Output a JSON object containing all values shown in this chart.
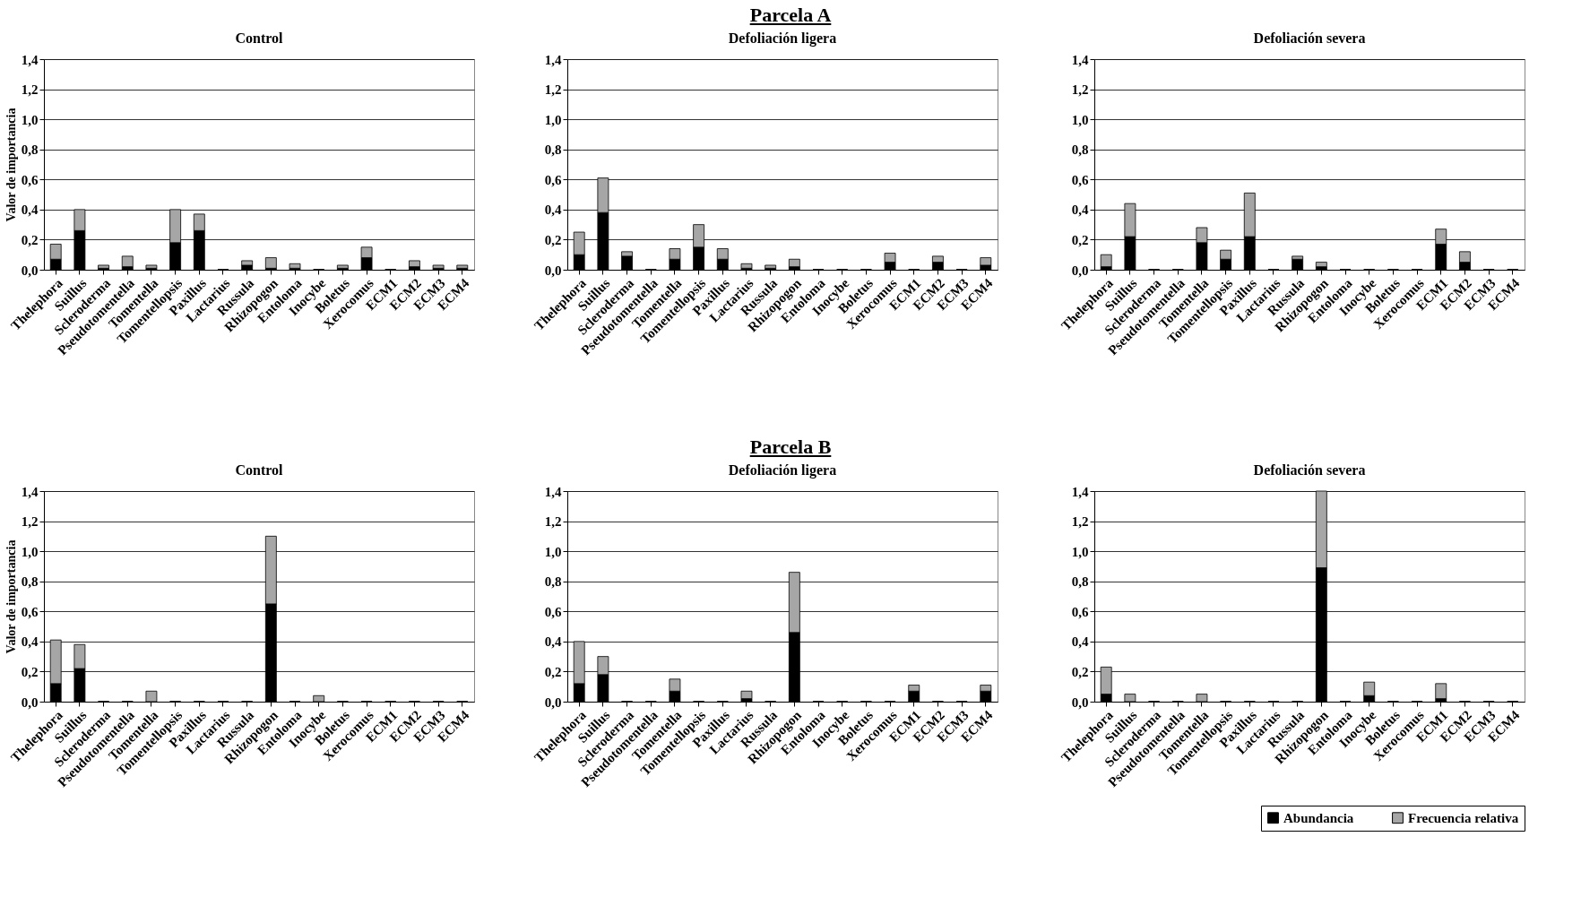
{
  "chart_data": [
    {
      "type": "bar",
      "stacked": true,
      "title": "Control",
      "ylabel": "Valor de importancia",
      "annotations": [
        "Parcela A"
      ],
      "grid": "y",
      "legend": false,
      "categories": [
        "Thelephora",
        "Suillus",
        "Scleroderma",
        "Pseudotomentella",
        "Tomentella",
        "Tomentellopsis",
        "Paxillus",
        "Lactarius",
        "Russula",
        "Rhizopogon",
        "Entoloma",
        "Inocybe",
        "Boletus",
        "Xerocomus",
        "ECM1",
        "ECM2",
        "ECM3",
        "ECM4"
      ],
      "ylim": [
        0,
        1.4
      ],
      "yticks": [
        {
          "value": 0,
          "label": "0,0"
        },
        {
          "value": 0.2,
          "label": "0,2"
        },
        {
          "value": 0.4,
          "label": "0,4"
        },
        {
          "value": 0.6,
          "label": "0,6"
        },
        {
          "value": 0.8,
          "label": "0,8"
        },
        {
          "value": 1,
          "label": "1,0"
        },
        {
          "value": 1.2,
          "label": "1,2"
        },
        {
          "value": 1.4,
          "label": "1,4"
        }
      ],
      "series": [
        {
          "color": "#000000",
          "values": [
            0.07,
            0.26,
            0.01,
            0.02,
            0.01,
            0.18,
            0.26,
            0,
            0.03,
            0.01,
            0.01,
            0,
            0.01,
            0.08,
            0,
            0.02,
            0.01,
            0.01
          ]
        },
        {
          "color": "#a6a6a6",
          "values": [
            0.1,
            0.14,
            0.02,
            0.07,
            0.02,
            0.22,
            0.11,
            0,
            0.03,
            0.07,
            0.03,
            0,
            0.02,
            0.07,
            0,
            0.04,
            0.02,
            0.02
          ]
        }
      ]
    },
    {
      "type": "bar",
      "stacked": true,
      "title": "Defoliación ligera",
      "grid": "y",
      "legend": false,
      "categories": [
        "Thelephora",
        "Suillus",
        "Scleroderma",
        "Pseudotomentella",
        "Tomentella",
        "Tomentellopsis",
        "Paxillus",
        "Lactarius",
        "Russula",
        "Rhizopogon",
        "Entoloma",
        "Inocybe",
        "Boletus",
        "Xerocomus",
        "ECM1",
        "ECM2",
        "ECM3",
        "ECM4"
      ],
      "ylim": [
        0,
        1.4
      ],
      "yticks": [
        {
          "value": 0,
          "label": "0,0"
        },
        {
          "value": 0.2,
          "label": "0,2"
        },
        {
          "value": 0.4,
          "label": "0,4"
        },
        {
          "value": 0.6,
          "label": "0,6"
        },
        {
          "value": 0.8,
          "label": "0,8"
        },
        {
          "value": 1,
          "label": "1,0"
        },
        {
          "value": 1.2,
          "label": "1,2"
        },
        {
          "value": 1.4,
          "label": "1,4"
        }
      ],
      "series": [
        {
          "color": "#000000",
          "values": [
            0.1,
            0.38,
            0.09,
            0,
            0.07,
            0.15,
            0.07,
            0.01,
            0.01,
            0.02,
            0,
            0,
            0,
            0.05,
            0,
            0.05,
            0,
            0.03
          ]
        },
        {
          "color": "#a6a6a6",
          "values": [
            0.15,
            0.23,
            0.03,
            0,
            0.07,
            0.15,
            0.07,
            0.03,
            0.02,
            0.05,
            0,
            0,
            0,
            0.06,
            0,
            0.04,
            0,
            0.05
          ]
        }
      ]
    },
    {
      "type": "bar",
      "stacked": true,
      "title": "Defoliación severa",
      "grid": "y",
      "legend": false,
      "categories": [
        "Thelephora",
        "Suillus",
        "Scleroderma",
        "Pseudotomentella",
        "Tomentella",
        "Tomentellopsis",
        "Paxillus",
        "Lactarius",
        "Russula",
        "Rhizopogon",
        "Entoloma",
        "Inocybe",
        "Boletus",
        "Xerocomus",
        "ECM1",
        "ECM2",
        "ECM3",
        "ECM4"
      ],
      "ylim": [
        0,
        1.4
      ],
      "yticks": [
        {
          "value": 0,
          "label": "0,0"
        },
        {
          "value": 0.2,
          "label": "0,2"
        },
        {
          "value": 0.4,
          "label": "0,4"
        },
        {
          "value": 0.6,
          "label": "0,6"
        },
        {
          "value": 0.8,
          "label": "0,8"
        },
        {
          "value": 1,
          "label": "1,0"
        },
        {
          "value": 1.2,
          "label": "1,2"
        },
        {
          "value": 1.4,
          "label": "1,4"
        }
      ],
      "series": [
        {
          "color": "#000000",
          "values": [
            0.02,
            0.22,
            0,
            0,
            0.18,
            0.07,
            0.22,
            0,
            0.07,
            0.02,
            0,
            0,
            0,
            0,
            0.17,
            0.05,
            0,
            0
          ]
        },
        {
          "color": "#a6a6a6",
          "values": [
            0.08,
            0.22,
            0,
            0,
            0.1,
            0.06,
            0.29,
            0,
            0.02,
            0.03,
            0,
            0,
            0,
            0,
            0.1,
            0.07,
            0,
            0
          ]
        }
      ]
    },
    {
      "type": "bar",
      "stacked": true,
      "title": "Control",
      "ylabel": "Valor de importancia",
      "annotations": [
        "Parcela B"
      ],
      "grid": "y",
      "legend": false,
      "categories": [
        "Thelephora",
        "Suillus",
        "Scleroderma",
        "Pseudotomentella",
        "Tomentella",
        "Tomentellopsis",
        "Paxillus",
        "Lactarius",
        "Russula",
        "Rhizopogon",
        "Entoloma",
        "Inocybe",
        "Boletus",
        "Xerocomus",
        "ECM1",
        "ECM2",
        "ECM3",
        "ECM4"
      ],
      "ylim": [
        0,
        1.4
      ],
      "yticks": [
        {
          "value": 0,
          "label": "0,0"
        },
        {
          "value": 0.2,
          "label": "0,2"
        },
        {
          "value": 0.4,
          "label": "0,4"
        },
        {
          "value": 0.6,
          "label": "0,6"
        },
        {
          "value": 0.8,
          "label": "0,8"
        },
        {
          "value": 1,
          "label": "1,0"
        },
        {
          "value": 1.2,
          "label": "1,2"
        },
        {
          "value": 1.4,
          "label": "1,4"
        }
      ],
      "series": [
        {
          "color": "#000000",
          "values": [
            0.12,
            0.22,
            0,
            0,
            0,
            0,
            0,
            0,
            0,
            0.65,
            0,
            0,
            0,
            0,
            0,
            0,
            0,
            0
          ]
        },
        {
          "color": "#a6a6a6",
          "values": [
            0.29,
            0.16,
            0,
            0,
            0.07,
            0,
            0,
            0,
            0,
            0.45,
            0,
            0.04,
            0,
            0,
            0,
            0,
            0,
            0
          ]
        }
      ]
    },
    {
      "type": "bar",
      "stacked": true,
      "title": "Defoliación ligera",
      "grid": "y",
      "legend": false,
      "categories": [
        "Thelephora",
        "Suillus",
        "Scleroderma",
        "Pseudotomentella",
        "Tomentella",
        "Tomentellopsis",
        "Paxillus",
        "Lactarius",
        "Russula",
        "Rhizopogon",
        "Entoloma",
        "Inocybe",
        "Boletus",
        "Xerocomus",
        "ECM1",
        "ECM2",
        "ECM3",
        "ECM4"
      ],
      "ylim": [
        0,
        1.4
      ],
      "yticks": [
        {
          "value": 0,
          "label": "0,0"
        },
        {
          "value": 0.2,
          "label": "0,2"
        },
        {
          "value": 0.4,
          "label": "0,4"
        },
        {
          "value": 0.6,
          "label": "0,6"
        },
        {
          "value": 0.8,
          "label": "0,8"
        },
        {
          "value": 1,
          "label": "1,0"
        },
        {
          "value": 1.2,
          "label": "1,2"
        },
        {
          "value": 1.4,
          "label": "1,4"
        }
      ],
      "series": [
        {
          "color": "#000000",
          "values": [
            0.12,
            0.18,
            0,
            0,
            0.07,
            0,
            0,
            0.02,
            0,
            0.46,
            0,
            0,
            0,
            0,
            0.07,
            0,
            0,
            0.07
          ]
        },
        {
          "color": "#a6a6a6",
          "values": [
            0.28,
            0.12,
            0,
            0,
            0.08,
            0,
            0,
            0.05,
            0,
            0.4,
            0,
            0,
            0,
            0,
            0.04,
            0,
            0,
            0.04
          ]
        }
      ]
    },
    {
      "type": "bar",
      "stacked": true,
      "title": "Defoliación severa",
      "grid": "y",
      "legend": "bottom right",
      "categories": [
        "Thelephora",
        "Suillus",
        "Scleroderma",
        "Pseudotomentella",
        "Tomentella",
        "Tomentellopsis",
        "Paxillus",
        "Lactarius",
        "Russula",
        "Rhizopogon",
        "Entoloma",
        "Inocybe",
        "Boletus",
        "Xerocomus",
        "ECM1",
        "ECM2",
        "ECM3",
        "ECM4"
      ],
      "ylim": [
        0,
        1.4
      ],
      "yticks": [
        {
          "value": 0,
          "label": "0,0"
        },
        {
          "value": 0.2,
          "label": "0,2"
        },
        {
          "value": 0.4,
          "label": "0,4"
        },
        {
          "value": 0.6,
          "label": "0,6"
        },
        {
          "value": 0.8,
          "label": "0,8"
        },
        {
          "value": 1,
          "label": "1,0"
        },
        {
          "value": 1.2,
          "label": "1,2"
        },
        {
          "value": 1.4,
          "label": "1,4"
        }
      ],
      "series": [
        {
          "name": "Abundancia",
          "color": "#000000",
          "values": [
            0.05,
            0,
            0,
            0,
            0,
            0,
            0,
            0,
            0,
            0.89,
            0,
            0.04,
            0,
            0,
            0.02,
            0,
            0,
            0
          ]
        },
        {
          "name": "Frecuencia relativa",
          "color": "#a6a6a6",
          "values": [
            0.18,
            0.05,
            0,
            0,
            0.05,
            0,
            0,
            0,
            0,
            0.51,
            0,
            0.09,
            0,
            0,
            0.1,
            0,
            0,
            0
          ]
        }
      ]
    }
  ]
}
